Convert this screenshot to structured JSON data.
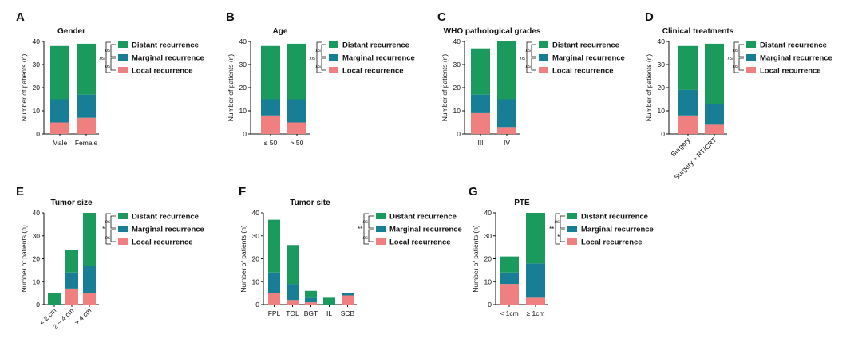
{
  "colors": {
    "local": "#f08080",
    "marginal": "#177e96",
    "distant": "#1a9a5c"
  },
  "chart_data": [
    {
      "panel": "A",
      "type": "bar",
      "stacked": true,
      "title": "Gender",
      "ylabel": "Number of patients (n)",
      "ylim": [
        0,
        40
      ],
      "yticks": [
        0,
        10,
        20,
        30,
        40
      ],
      "categories": [
        "Male",
        "Female"
      ],
      "rotate_labels": false,
      "series": [
        {
          "name": "Local recurrence",
          "color_key": "local",
          "values": [
            5,
            7
          ]
        },
        {
          "name": "Marginal recurrence",
          "color_key": "marginal",
          "values": [
            10,
            10
          ]
        },
        {
          "name": "Distant recurrence",
          "color_key": "distant",
          "values": [
            23,
            22
          ]
        }
      ],
      "significance": {
        "overall": "ns",
        "upper": "ns",
        "lower": "ns"
      }
    },
    {
      "panel": "B",
      "type": "bar",
      "stacked": true,
      "title": "Age",
      "ylabel": "Number of patients (n)",
      "ylim": [
        0,
        40
      ],
      "yticks": [
        0,
        10,
        20,
        30,
        40
      ],
      "categories": [
        "≤ 50",
        "> 50"
      ],
      "rotate_labels": false,
      "series": [
        {
          "name": "Local recurrence",
          "color_key": "local",
          "values": [
            8,
            5
          ]
        },
        {
          "name": "Marginal recurrence",
          "color_key": "marginal",
          "values": [
            7,
            10
          ]
        },
        {
          "name": "Distant recurrence",
          "color_key": "distant",
          "values": [
            23,
            24
          ]
        }
      ],
      "significance": {
        "overall": "ns",
        "upper": "ns",
        "lower": "ns"
      }
    },
    {
      "panel": "C",
      "type": "bar",
      "stacked": true,
      "title": "WHO pathological grades",
      "ylabel": "Number of patients (n)",
      "ylim": [
        0,
        40
      ],
      "yticks": [
        0,
        10,
        20,
        30,
        40
      ],
      "categories": [
        "III",
        "IV"
      ],
      "rotate_labels": false,
      "series": [
        {
          "name": "Local recurrence",
          "color_key": "local",
          "values": [
            9,
            3
          ]
        },
        {
          "name": "Marginal recurrence",
          "color_key": "marginal",
          "values": [
            8,
            12
          ]
        },
        {
          "name": "Distant recurrence",
          "color_key": "distant",
          "values": [
            20,
            25
          ]
        }
      ],
      "significance": {
        "overall": "ns",
        "upper": "ns",
        "lower": "ns"
      }
    },
    {
      "panel": "D",
      "type": "bar",
      "stacked": true,
      "title": "Clinical treatments",
      "ylabel": "Number of patients (n)",
      "ylim": [
        0,
        40
      ],
      "yticks": [
        0,
        10,
        20,
        30,
        40
      ],
      "categories": [
        "Surgery",
        "Surgery + RT/CRT"
      ],
      "rotate_labels": true,
      "series": [
        {
          "name": "Local recurrence",
          "color_key": "local",
          "values": [
            8,
            4
          ]
        },
        {
          "name": "Marginal recurrence",
          "color_key": "marginal",
          "values": [
            11,
            9
          ]
        },
        {
          "name": "Distant recurrence",
          "color_key": "distant",
          "values": [
            19,
            26
          ]
        }
      ],
      "significance": {
        "overall": "ns",
        "upper": "ns",
        "lower": "ns"
      }
    },
    {
      "panel": "E",
      "type": "bar",
      "stacked": true,
      "title": "Tumor size",
      "ylabel": "Number of patients (n)",
      "ylim": [
        0,
        40
      ],
      "yticks": [
        0,
        10,
        20,
        30,
        40
      ],
      "categories": [
        "< 2 cm",
        "2 ~ 4 cm",
        "> 4 cm"
      ],
      "rotate_labels": true,
      "series": [
        {
          "name": "Local recurrence",
          "color_key": "local",
          "values": [
            0,
            7,
            5
          ]
        },
        {
          "name": "Marginal recurrence",
          "color_key": "marginal",
          "values": [
            0,
            7,
            12
          ]
        },
        {
          "name": "Distant recurrence",
          "color_key": "distant",
          "values": [
            5,
            10,
            23
          ]
        }
      ],
      "significance": {
        "overall": "*",
        "upper": "ns",
        "lower": "ns"
      }
    },
    {
      "panel": "F",
      "type": "bar",
      "stacked": true,
      "title": "Tumor site",
      "ylabel": "Number of patients (n)",
      "ylim": [
        0,
        40
      ],
      "yticks": [
        0,
        10,
        20,
        30,
        40
      ],
      "categories": [
        "FPL",
        "TOL",
        "BGT",
        "IL",
        "SCB"
      ],
      "rotate_labels": false,
      "series": [
        {
          "name": "Local recurrence",
          "color_key": "local",
          "values": [
            5,
            2,
            1,
            0,
            4
          ]
        },
        {
          "name": "Marginal recurrence",
          "color_key": "marginal",
          "values": [
            9,
            7,
            2,
            0,
            1
          ]
        },
        {
          "name": "Distant recurrence",
          "color_key": "distant",
          "values": [
            23,
            17,
            3,
            3,
            0
          ]
        }
      ],
      "significance": {
        "overall": "**",
        "upper": "ns",
        "lower": "ns"
      }
    },
    {
      "panel": "G",
      "type": "bar",
      "stacked": true,
      "title": "PTE",
      "ylabel": "Number of patients (n)",
      "ylim": [
        0,
        40
      ],
      "yticks": [
        0,
        10,
        20,
        30,
        40
      ],
      "categories": [
        "< 1cm",
        "≥ 1cm"
      ],
      "rotate_labels": false,
      "series": [
        {
          "name": "Local recurrence",
          "color_key": "local",
          "values": [
            9,
            3
          ]
        },
        {
          "name": "Marginal recurrence",
          "color_key": "marginal",
          "values": [
            5,
            15
          ]
        },
        {
          "name": "Distant recurrence",
          "color_key": "distant",
          "values": [
            7,
            22
          ]
        }
      ],
      "significance": {
        "overall": "**",
        "upper": "ns",
        "lower": "*"
      }
    }
  ]
}
